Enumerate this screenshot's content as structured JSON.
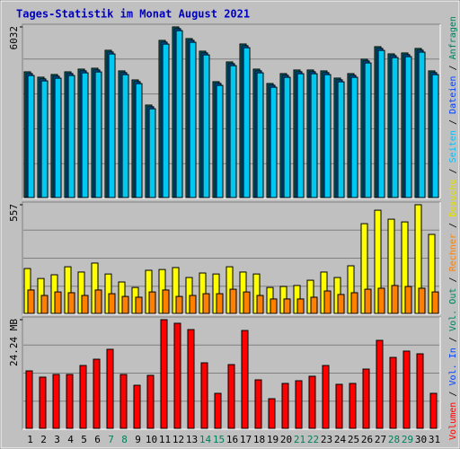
{
  "chart_data": [
    {
      "type": "bar",
      "title": "Tages-Statistik im Monat August 2021",
      "ylim": [
        0,
        6032
      ],
      "yticks": [
        6032
      ],
      "series": [
        {
          "name": "Anfragen",
          "color": "#008080",
          "label_color": "#00805c",
          "values": [
            4445,
            4255,
            4350,
            4445,
            4540,
            4572,
            5207,
            4477,
            4159,
            3270,
            5556,
            6032,
            5620,
            5175,
            4096,
            4794,
            5429,
            4540,
            4032,
            4382,
            4509,
            4509,
            4477,
            4223,
            4382,
            4890,
            5334,
            5080,
            5112,
            5271,
            4477
          ]
        },
        {
          "name": "Dateien",
          "color": "#0060c0",
          "label_color": "#0040ff",
          "values": [
            4385,
            4195,
            4290,
            4385,
            4480,
            4512,
            5147,
            4417,
            4099,
            3210,
            5496,
            5972,
            5560,
            5115,
            4036,
            4734,
            5369,
            4480,
            3972,
            4322,
            4449,
            4449,
            4417,
            4163,
            4322,
            4830,
            5274,
            5020,
            5052,
            5211,
            4417
          ]
        },
        {
          "name": "Seiten",
          "color": "#00c8f0",
          "label_color": "#00c0ff",
          "values": [
            4315,
            4125,
            4220,
            4315,
            4410,
            4442,
            5077,
            4347,
            4029,
            3140,
            5426,
            5902,
            5490,
            5045,
            3966,
            4664,
            5299,
            4410,
            3902,
            4252,
            4379,
            4379,
            4347,
            4093,
            4252,
            4760,
            5204,
            4950,
            4982,
            5141,
            4347
          ]
        }
      ]
    },
    {
      "type": "bar",
      "ylim": [
        0,
        557
      ],
      "yticks": [
        557
      ],
      "series": [
        {
          "name": "Besuche",
          "color": "#ffff00",
          "label_color": "#e0e000",
          "values": [
            230,
            179,
            198,
            239,
            212,
            258,
            202,
            161,
            133,
            221,
            225,
            235,
            184,
            207,
            202,
            239,
            212,
            202,
            133,
            138,
            143,
            170,
            212,
            184,
            244,
            460,
            529,
            483,
            469,
            557,
            405
          ]
        },
        {
          "name": "Rechner",
          "color": "#ff8000",
          "label_color": "#ff8000",
          "values": [
            120,
            92,
            110,
            106,
            92,
            120,
            101,
            87,
            83,
            110,
            120,
            87,
            92,
            101,
            101,
            124,
            110,
            92,
            74,
            74,
            74,
            83,
            115,
            97,
            106,
            124,
            129,
            143,
            138,
            129,
            110
          ]
        }
      ]
    },
    {
      "type": "bar",
      "ylim": [
        0,
        24.24
      ],
      "yticks": [
        {
          "value": 24.24,
          "label": "24.24 MB"
        }
      ],
      "categories": [
        "1",
        "2",
        "3",
        "4",
        "5",
        "6",
        "7",
        "8",
        "9",
        "10",
        "11",
        "12",
        "13",
        "14",
        "15",
        "16",
        "17",
        "18",
        "19",
        "20",
        "21",
        "22",
        "23",
        "24",
        "25",
        "26",
        "27",
        "28",
        "29",
        "30",
        "31"
      ],
      "highlight_categories": [
        "7",
        "8",
        "14",
        "15",
        "21",
        "22",
        "28",
        "29"
      ],
      "highlight_color": "#00805c",
      "series": [
        {
          "name": "Volumen",
          "color": "#ff0000",
          "label_color": "#ff0000",
          "values": [
            12.82,
            11.42,
            12.02,
            12.02,
            14.02,
            15.42,
            17.63,
            12.02,
            9.61,
            11.82,
            24.24,
            23.44,
            22.03,
            14.62,
            7.81,
            14.22,
            21.83,
            10.82,
            6.61,
            10.02,
            10.62,
            11.62,
            14.02,
            9.82,
            10.02,
            13.22,
            19.63,
            15.82,
            17.23,
            16.63,
            7.81
          ]
        }
      ],
      "legend_only": [
        {
          "name": "Vol. In",
          "label_color": "#0040ff"
        },
        {
          "name": "Vol. Out",
          "label_color": "#00805c"
        }
      ]
    }
  ],
  "legend_separator": " / "
}
